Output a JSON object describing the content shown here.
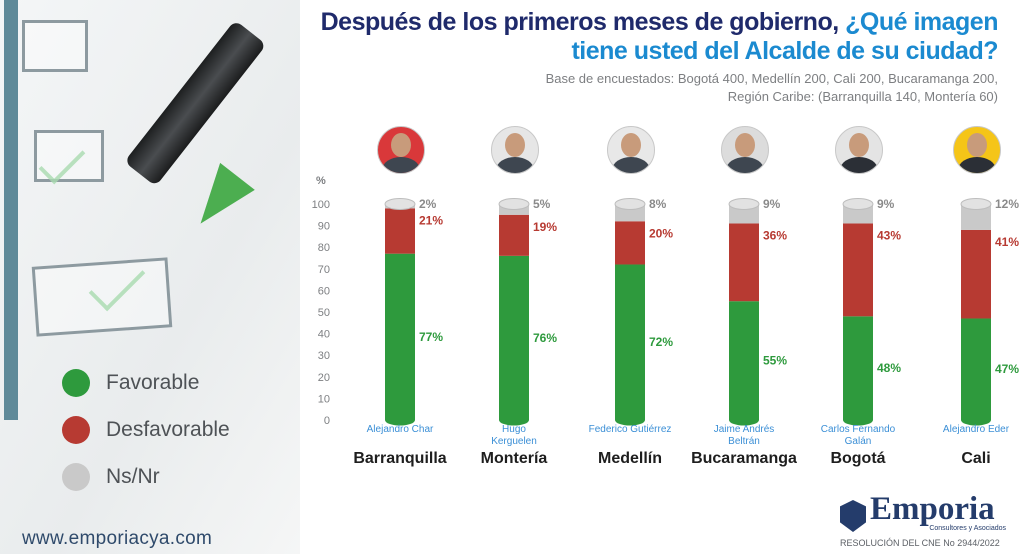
{
  "header": {
    "title_part1": "Después de los primeros meses de gobierno, ",
    "title_part2": "¿Qué imagen",
    "title_line2": "tiene usted del Alcalde de su ciudad?",
    "subtitle_line1": "Base de encuestados: Bogotá 400, Medellín 200, Cali 200, Bucaramanga 200,",
    "subtitle_line2": "Región Caribe: (Barranquilla 140, Montería 60)"
  },
  "legend": [
    {
      "label": "Favorable",
      "color": "#2e9a3d"
    },
    {
      "label": "Desfavorable",
      "color": "#b73a32"
    },
    {
      "label": "Ns/Nr",
      "color": "#c9c9c9"
    }
  ],
  "footer": {
    "website": "www.emporiacya.com",
    "logo_name": "Emporia",
    "logo_tagline": "Consultores y Asociados",
    "resolution": "RESOLUCIÓN DEL CNE No 2944/2022"
  },
  "chart_data": {
    "type": "bar",
    "stacked": true,
    "ylabel": "%",
    "ylim": [
      0,
      100
    ],
    "yticks": [
      0,
      10,
      20,
      30,
      40,
      50,
      60,
      70,
      80,
      90,
      100
    ],
    "categories": [
      "Barranquilla",
      "Montería",
      "Medellín",
      "Bucaramanga",
      "Bogotá",
      "Cali"
    ],
    "mayors": [
      [
        "Alejandro Char"
      ],
      [
        "Hugo",
        "Kerguelen"
      ],
      [
        "Federico Gutiérrez"
      ],
      [
        "Jaime Andrés",
        "Beltrán"
      ],
      [
        "Carlos Fernando",
        "Galán"
      ],
      [
        "Alejandro Eder"
      ]
    ],
    "series": [
      {
        "name": "Favorable",
        "color": "#2e9a3d",
        "label_color": "#2e9a3d",
        "values": [
          77,
          76,
          72,
          55,
          48,
          47
        ]
      },
      {
        "name": "Desfavorable",
        "color": "#b73a32",
        "label_color": "#b73a32",
        "values": [
          21,
          19,
          20,
          36,
          43,
          41
        ]
      },
      {
        "name": "Ns/Nr",
        "color": "#c9c9c9",
        "label_color": "#8a8a8a",
        "values": [
          2,
          5,
          8,
          9,
          9,
          12
        ]
      }
    ],
    "avatar_bg": [
      "#d9383a",
      "#e6e6e6",
      "#e8e8e8",
      "#dcdcdc",
      "#e4e4e4",
      "#f5c518"
    ]
  }
}
